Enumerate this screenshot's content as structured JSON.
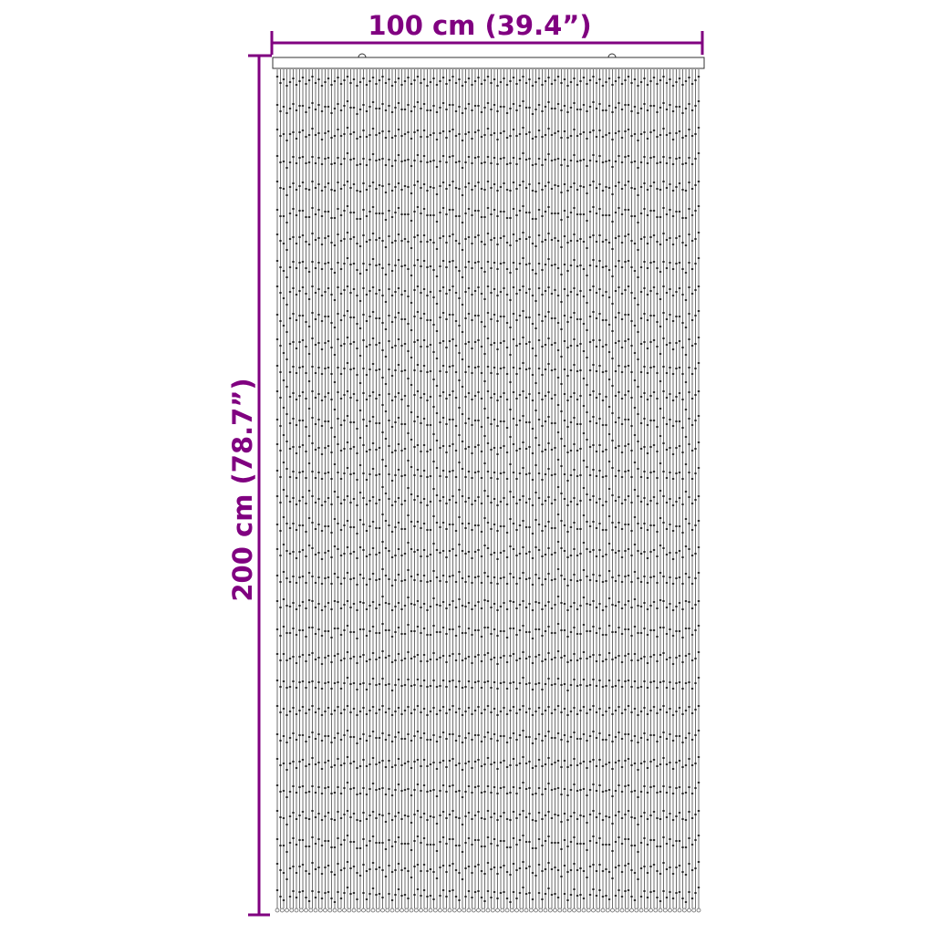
{
  "dimensions": {
    "width_label": "100 cm (39.4”)",
    "height_label": "200 cm (78.7”)"
  },
  "colors": {
    "dimension": "#800080",
    "drawing": "#333333",
    "rod_fill": "#ffffff"
  },
  "product": "bead-door-curtain"
}
